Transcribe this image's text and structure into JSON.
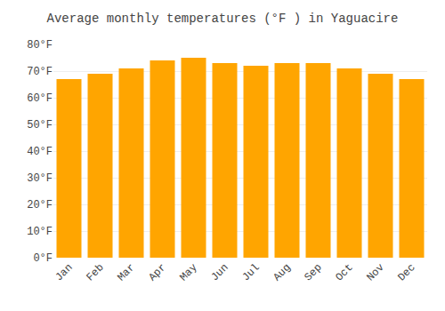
{
  "chart_data": {
    "type": "bar",
    "title": "Average monthly temperatures (°F ) in Yaguacire",
    "categories": [
      "Jan",
      "Feb",
      "Mar",
      "Apr",
      "May",
      "Jun",
      "Jul",
      "Aug",
      "Sep",
      "Oct",
      "Nov",
      "Dec"
    ],
    "values": [
      67,
      69,
      71,
      74,
      75,
      73,
      72,
      73,
      73,
      71,
      69,
      67
    ],
    "color": "#FFA500",
    "ylim": [
      0,
      80
    ],
    "yticks": [
      {
        "value": 0,
        "label": "0°F"
      },
      {
        "value": 10,
        "label": "10°F"
      },
      {
        "value": 20,
        "label": "20°F"
      },
      {
        "value": 30,
        "label": "30°F"
      },
      {
        "value": 40,
        "label": "40°F"
      },
      {
        "value": 50,
        "label": "50°F"
      },
      {
        "value": 60,
        "label": "60°F"
      },
      {
        "value": 70,
        "label": "70°F"
      },
      {
        "value": 80,
        "label": "80°F"
      }
    ],
    "grid": true
  }
}
